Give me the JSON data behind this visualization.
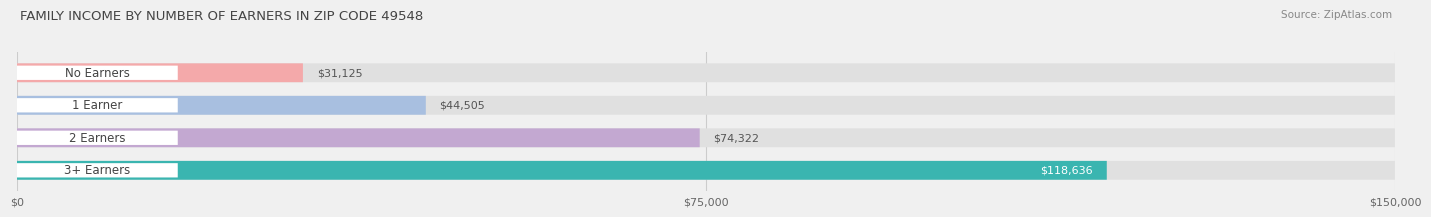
{
  "title": "FAMILY INCOME BY NUMBER OF EARNERS IN ZIP CODE 49548",
  "source": "Source: ZipAtlas.com",
  "categories": [
    "No Earners",
    "1 Earner",
    "2 Earners",
    "3+ Earners"
  ],
  "values": [
    31125,
    44505,
    74322,
    118636
  ],
  "value_labels": [
    "$31,125",
    "$44,505",
    "$74,322",
    "$118,636"
  ],
  "bar_colors": [
    "#f4a9aa",
    "#a8bfe0",
    "#c3a8d1",
    "#3ab5b0"
  ],
  "label_text_colors": [
    "#555555",
    "#555555",
    "#555555",
    "#555555"
  ],
  "value_text_colors": [
    "#555555",
    "#555555",
    "#555555",
    "#ffffff"
  ],
  "bar_height": 0.58,
  "xlim": [
    0,
    150000
  ],
  "xticks": [
    0,
    75000,
    150000
  ],
  "xtick_labels": [
    "$0",
    "$75,000",
    "$150,000"
  ],
  "background_color": "#f0f0f0",
  "bar_bg_color": "#e0e0e0",
  "title_fontsize": 9.5,
  "source_fontsize": 7.5,
  "label_fontsize": 8.5,
  "value_fontsize": 8,
  "tick_fontsize": 8
}
